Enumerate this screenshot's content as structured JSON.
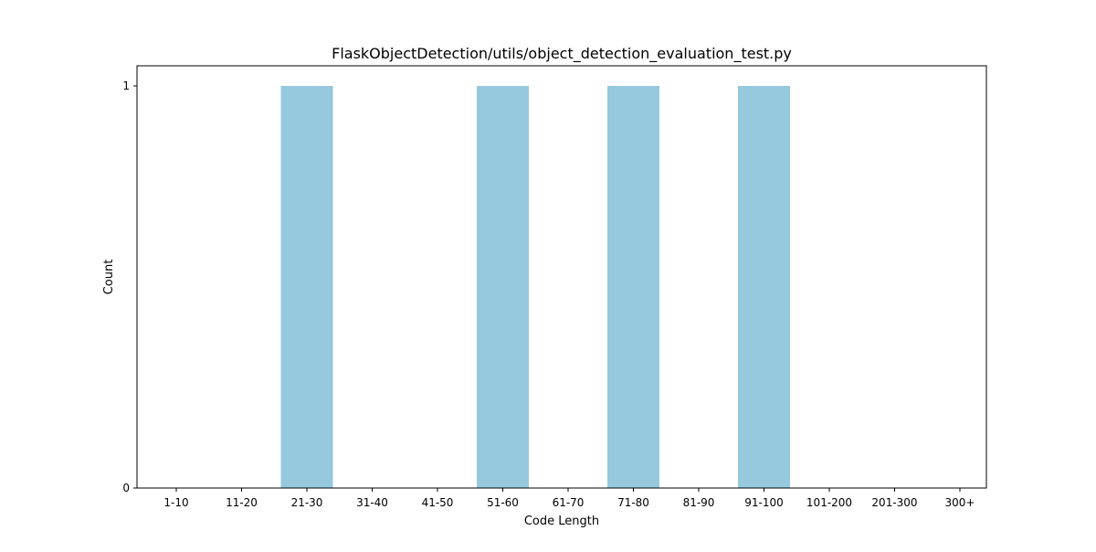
{
  "chart_data": {
    "type": "bar",
    "title": "FlaskObjectDetection/utils/object_detection_evaluation_test.py",
    "xlabel": "Code Length",
    "ylabel": "Count",
    "categories": [
      "1-10",
      "11-20",
      "21-30",
      "31-40",
      "41-50",
      "51-60",
      "61-70",
      "71-80",
      "81-90",
      "91-100",
      "101-200",
      "201-300",
      "300+"
    ],
    "values": [
      0,
      0,
      1,
      0,
      0,
      1,
      0,
      1,
      0,
      1,
      0,
      0,
      0
    ],
    "yticks": [
      0,
      1
    ],
    "ylim": [
      0,
      1.05
    ],
    "bar_color": "#96c9de",
    "grid": false,
    "legend": "none"
  }
}
